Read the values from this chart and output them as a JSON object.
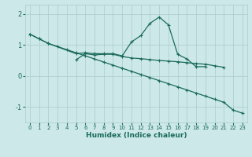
{
  "x": [
    0,
    1,
    2,
    3,
    4,
    5,
    6,
    7,
    8,
    9,
    10,
    11,
    12,
    13,
    14,
    15,
    16,
    17,
    18,
    19,
    20,
    21,
    22,
    23
  ],
  "line1": [
    1.35,
    1.2,
    1.05,
    null,
    null,
    0.72,
    0.75,
    0.72,
    0.72,
    0.72,
    0.65,
    1.1,
    1.3,
    1.7,
    1.9,
    1.65,
    0.7,
    0.55,
    0.3,
    0.3,
    null,
    null,
    null,
    null
  ],
  "line2": [
    null,
    null,
    null,
    null,
    null,
    0.52,
    0.72,
    0.68,
    0.7,
    0.7,
    0.63,
    0.58,
    0.56,
    0.53,
    0.5,
    0.48,
    0.46,
    0.43,
    0.4,
    0.38,
    0.33,
    0.28,
    null,
    null
  ],
  "line3": [
    1.35,
    1.2,
    1.05,
    0.95,
    0.85,
    0.75,
    0.65,
    0.55,
    0.45,
    0.35,
    0.25,
    0.15,
    0.05,
    -0.05,
    -0.15,
    -0.25,
    -0.35,
    -0.45,
    -0.55,
    -0.65,
    -0.75,
    -0.85,
    -1.1,
    -1.2
  ],
  "bg_color": "#cce8e8",
  "line_color": "#1a6b5a",
  "grid_color": "#aacccc",
  "xlabel": "Humidex (Indice chaleur)",
  "ylim": [
    -1.5,
    2.3
  ],
  "xlim": [
    -0.5,
    23.5
  ],
  "yticks": [
    -1,
    0,
    1,
    2
  ],
  "xticks": [
    0,
    1,
    2,
    3,
    4,
    5,
    6,
    7,
    8,
    9,
    10,
    11,
    12,
    13,
    14,
    15,
    16,
    17,
    18,
    19,
    20,
    21,
    22,
    23
  ]
}
